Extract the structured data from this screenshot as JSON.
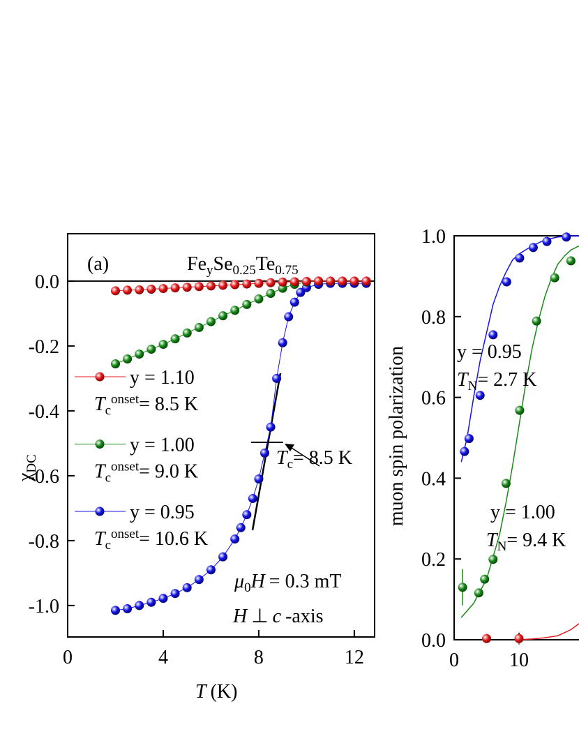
{
  "chart_data": [
    {
      "type": "scatter",
      "panel_label": "(a)",
      "title": [
        "Fe",
        "y",
        "Se",
        "0.25",
        "Te",
        "0.75"
      ],
      "xlabel": [
        "T",
        "(K)"
      ],
      "ylabel": [
        "χ",
        "DC"
      ],
      "xlim": [
        0,
        12.85
      ],
      "ylim": [
        -1.097,
        0.146
      ],
      "xticks": [
        0,
        4,
        8,
        12
      ],
      "yticks": [
        {
          "value": 0,
          "label": "0.0"
        },
        {
          "value": -0.2,
          "label": "-0.2"
        },
        {
          "value": -0.4,
          "label": "-0.4"
        },
        {
          "value": -0.6,
          "label": "-0.6"
        },
        {
          "value": -0.8,
          "label": "-0.8"
        },
        {
          "value": -1,
          "label": "-1.0"
        }
      ],
      "series": [
        {
          "name": "y = 1.10",
          "color": "#e41a1c",
          "tc_onset": [
            "T",
            "c",
            "onset",
            "= 8.5 K"
          ],
          "x": [
            2,
            2.5,
            3,
            3.5,
            4,
            4.5,
            5,
            5.5,
            6,
            6.5,
            7,
            7.5,
            8,
            8.5,
            9,
            9.5,
            10,
            10.5,
            11,
            11.5,
            12,
            12.5
          ],
          "values": [
            -0.03,
            -0.028,
            -0.027,
            -0.025,
            -0.023,
            -0.021,
            -0.019,
            -0.017,
            -0.015,
            -0.013,
            -0.011,
            -0.009,
            -0.007,
            -0.005,
            -0.003,
            -0.002,
            -0.001,
            0,
            0,
            0,
            0,
            0
          ]
        },
        {
          "name": "y = 1.00",
          "color": "#1a8a1a",
          "tc_onset": [
            "T",
            "c",
            "onset",
            "= 9.0 K"
          ],
          "x": [
            2,
            2.5,
            3,
            3.5,
            4,
            4.5,
            5,
            5.5,
            6,
            6.5,
            7,
            7.5,
            8,
            8.5,
            9,
            9.5,
            10,
            10.5
          ],
          "values": [
            -0.255,
            -0.24,
            -0.225,
            -0.21,
            -0.195,
            -0.178,
            -0.16,
            -0.143,
            -0.125,
            -0.107,
            -0.09,
            -0.072,
            -0.055,
            -0.038,
            -0.022,
            -0.01,
            -0.003,
            0
          ]
        },
        {
          "name": "y = 0.95",
          "color": "#1515e6",
          "tc_onset": [
            "T",
            "c",
            "onset",
            "= 10.6 K"
          ],
          "x": [
            2,
            2.5,
            3,
            3.5,
            4,
            4.5,
            5,
            5.5,
            6,
            6.5,
            7,
            7.25,
            7.5,
            7.75,
            8,
            8.25,
            8.5,
            8.75,
            9,
            9.25,
            9.5,
            9.75,
            10,
            10.5,
            11,
            11.5,
            12,
            12.5
          ],
          "values": [
            -1.015,
            -1.01,
            -1,
            -0.99,
            -0.978,
            -0.963,
            -0.945,
            -0.92,
            -0.89,
            -0.85,
            -0.795,
            -0.76,
            -0.72,
            -0.67,
            -0.61,
            -0.53,
            -0.45,
            -0.3,
            -0.19,
            -0.11,
            -0.065,
            -0.035,
            -0.02,
            -0.01,
            -0.007,
            -0.007,
            -0.007,
            -0.007
          ]
        }
      ],
      "tc_label": [
        "T",
        "c",
        "= 8.5 K"
      ],
      "field_label": [
        "μ",
        "0",
        "H",
        "= 0.3 mT"
      ],
      "orientation_label": [
        "H",
        "⊥",
        "c",
        "-axis"
      ]
    },
    {
      "type": "scatter",
      "ylabel": "muon spin polarization",
      "xlim": [
        0,
        19.25
      ],
      "ylim": [
        0,
        1
      ],
      "xticks": [
        0,
        10
      ],
      "yticks": [
        {
          "value": 0,
          "label": "0.0"
        },
        {
          "value": 0.2,
          "label": "0.2"
        },
        {
          "value": 0.4,
          "label": "0.4"
        },
        {
          "value": 0.6,
          "label": "0.6"
        },
        {
          "value": 0.8,
          "label": "0.8"
        },
        {
          "value": 1,
          "label": "1.0"
        }
      ],
      "series": [
        {
          "name": "y = 0.95",
          "color": "#1515e6",
          "tn": [
            "T",
            "N",
            "= 2.7 K"
          ],
          "x": [
            1.6,
            2.3,
            4,
            6,
            8.1,
            10.1,
            12.2,
            14.3,
            17.3
          ],
          "values": [
            0.466,
            0.498,
            0.605,
            0.755,
            0.886,
            0.945,
            0.971,
            0.986,
            0.997
          ]
        },
        {
          "name": "y = 1.00",
          "color": "#1a8a1a",
          "tn": [
            "T",
            "N",
            "= 9.4 K"
          ],
          "x": [
            1.3,
            3.8,
            4.7,
            6,
            8,
            10.1,
            12.7,
            15.5,
            18
          ],
          "values": [
            0.13,
            0.116,
            0.15,
            0.199,
            0.387,
            0.568,
            0.789,
            0.896,
            0.938
          ],
          "errors": [
            0.045,
            null,
            null,
            null,
            null,
            null,
            null,
            null,
            null
          ]
        },
        {
          "color": "#e41a1c",
          "x": [
            5,
            10
          ],
          "values": [
            0.003,
            0.003
          ],
          "errors": [
            0.005,
            0.015
          ]
        }
      ],
      "fits": [
        {
          "color": "#1515e6",
          "x": [
            1.1,
            2,
            3,
            4,
            5,
            6,
            7,
            8,
            9,
            10,
            12,
            14,
            16,
            18,
            19.25
          ],
          "values": [
            0.44,
            0.5,
            0.6,
            0.69,
            0.76,
            0.83,
            0.875,
            0.91,
            0.94,
            0.955,
            0.975,
            0.99,
            0.997,
            1,
            1
          ]
        },
        {
          "color": "#1a8a1a",
          "x": [
            1.1,
            3,
            5,
            7,
            8,
            9,
            10,
            11,
            12,
            13,
            14,
            15,
            16,
            17,
            18,
            19.25
          ],
          "values": [
            0.055,
            0.09,
            0.15,
            0.26,
            0.34,
            0.43,
            0.53,
            0.63,
            0.72,
            0.79,
            0.85,
            0.895,
            0.93,
            0.95,
            0.965,
            0.975
          ]
        },
        {
          "color": "#e41a1c",
          "x": [
            10,
            12,
            14,
            16,
            18,
            19.25
          ],
          "values": [
            0,
            0.002,
            0.005,
            0.01,
            0.025,
            0.04
          ]
        }
      ]
    }
  ]
}
